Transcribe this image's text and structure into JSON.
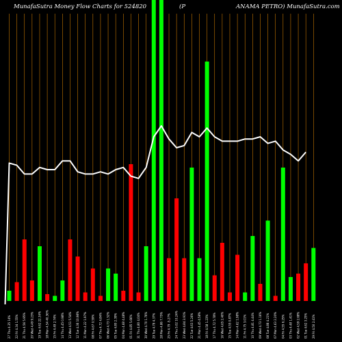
{
  "header": {
    "title_left": "MunafaSutra  Money Flow  Charts for 524820",
    "title_mid": "(P",
    "title_right": "ANAMA PETRO) MunafaSutra.com"
  },
  "colors": {
    "background": "#000000",
    "grid": "#c87800",
    "up": "#00ff00",
    "down": "#ff0000",
    "line": "#ffffff"
  },
  "chart_data": {
    "type": "bar",
    "title": "MunafaSutra  Money Flow  Charts for 524820 (PANAMA PETRO) MunafaSutra.com",
    "grid": true,
    "series": [
      {
        "kind": "bar",
        "values": [
          6,
          11,
          36,
          12,
          32,
          4,
          3,
          12,
          36,
          26,
          5,
          19,
          3,
          19,
          16,
          6,
          80,
          5,
          32,
          180,
          180,
          25,
          60,
          25,
          78,
          25,
          140,
          15,
          34,
          5,
          27,
          5,
          38,
          10,
          47,
          3,
          78,
          14,
          16,
          22,
          31
        ],
        "colors": [
          "up",
          "down",
          "down",
          "down",
          "up",
          "down",
          "up",
          "up",
          "down",
          "down",
          "down",
          "down",
          "down",
          "up",
          "up",
          "down",
          "down",
          "down",
          "up",
          "up",
          "up",
          "down",
          "down",
          "down",
          "up",
          "up",
          "up",
          "down",
          "down",
          "down",
          "down",
          "up",
          "up",
          "down",
          "up",
          "down",
          "up",
          "up",
          "down",
          "down",
          "up"
        ]
      },
      {
        "kind": "line",
        "values": [
          63,
          62,
          58,
          58,
          61,
          60,
          60,
          64,
          64,
          59,
          58,
          58,
          59,
          58,
          60,
          61,
          57,
          56,
          61,
          75,
          80,
          74,
          70,
          71,
          77,
          75,
          79,
          75,
          73,
          73,
          73,
          74,
          74,
          75,
          72,
          73,
          69,
          67,
          64,
          68
        ]
      }
    ],
    "x_tick_labels": [
      "27 Thu 4.35 14%",
      "22 Fri 4.34 1.55%",
      "21 Thu 4.56 5.95%",
      "20 Wed 4.49 9.23%",
      "19 Tue 4.62 22.34%",
      "18 Mon 4.54 40.36%",
      "15 Fri 4.49 2.74%",
      "14 Thu 4.45 0.98%",
      "13 Wed 4.51 5.54%",
      "12 Tue 4.36 10.98%",
      "11 Mon 4.22 1.97%",
      "08 Fri 4.67 0.59%",
      "07 Thu 4.72 4.84%",
      "06 Wed 4.73 1.52%",
      "05 Tue 4.80 2.39%",
      "04 Mon 4.68 4.48%",
      "01 Fri 4.85 5.66%",
      "31 Thu 4.80 4.04%",
      "30 Wed 4.70 1.76%",
      "29 Tue 4.79 4.37%",
      "28 Mon 4.86 7.75%",
      "25 Fri 4.79 -5.27%",
      "24 Thu 5.02 10.24%",
      "23 Wed 4.84 3.91%",
      "22 Tue 4.63 5.24%",
      "21 Mon 4.45 4.58%",
      "18 Fri 4.58 1.23%",
      "17 Thu 4.72 5.78%",
      "16 Wed 4.65 2.40%",
      "15 Tue 4.55 0.87%",
      "14 Mon 4.62 1.98%",
      "11 Fri 4.75 3.01%",
      "10 Thu 4.81 4.44%",
      "09 Wed 4.73 1.16%",
      "08 Tue 4.88 4.21%",
      "07 Mon 4.63 2.20%",
      "04 Fri 4.55 6.25%",
      "03 Thu 4.48 1.41%",
      "02 Wed 4.59 2.68%",
      "01 Tue 4.62 3.25%",
      "29 Fri 4.50 2.41%"
    ]
  }
}
